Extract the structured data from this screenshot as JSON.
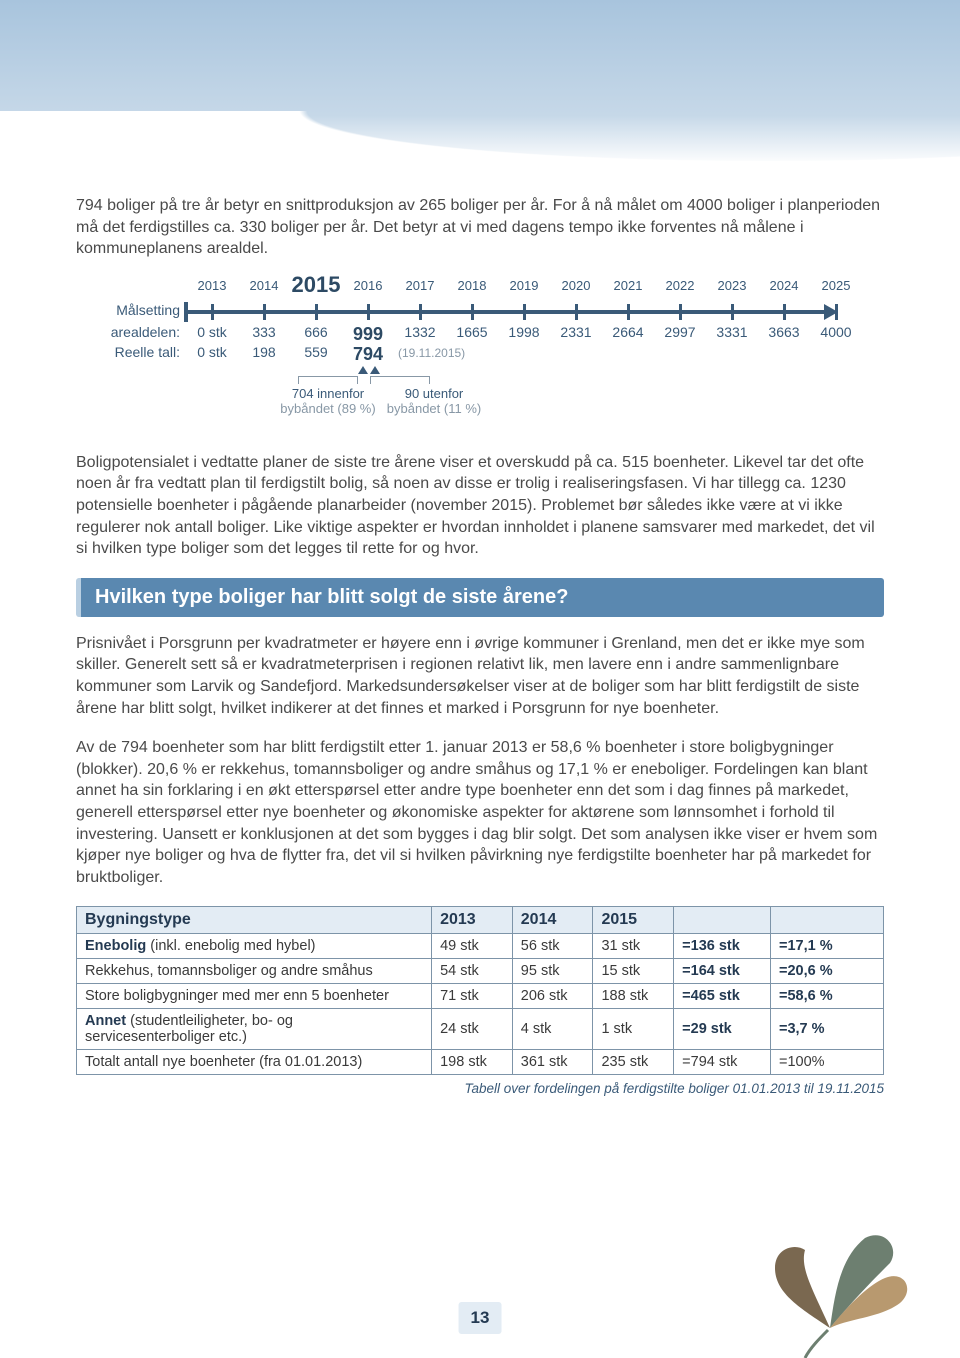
{
  "intro_para": "794 boliger på tre år betyr en snittproduksjon av 265 boliger per år. For å nå målet om 4000 boliger i planperioden må det ferdigstilles ca. 330 boliger per år. Det betyr at vi med dagens tempo ikke forventes nå målene i kommuneplanens arealdel.",
  "timeline": {
    "years": [
      "2013",
      "2014",
      "2015",
      "2016",
      "2017",
      "2018",
      "2019",
      "2020",
      "2021",
      "2022",
      "2023",
      "2024",
      "2025"
    ],
    "highlight_year_index": 2,
    "label_malsetting": "Målsetting",
    "label_arealdelen": "arealdelen:",
    "label_reelle": "Reelle tall:",
    "arealdelen": [
      "0 stk",
      "333",
      "666",
      "999",
      "1332",
      "1665",
      "1998",
      "2331",
      "2664",
      "2997",
      "3331",
      "3663",
      "4000"
    ],
    "highlight_areal_index": 3,
    "reelle": [
      "0 stk",
      "198",
      "559",
      "794"
    ],
    "highlight_reelle_index": 3,
    "reelle_note": "(19.11.2015)",
    "callout1_line1": "704 innenfor",
    "callout1_line2": "bybåndet (89 %)",
    "callout2_line1": "90 utenfor",
    "callout2_line2": "bybåndet (11 %)",
    "line_color": "#3a5a78"
  },
  "mid_para": "Boligpotensialet i vedtatte planer de siste tre årene viser et overskudd på ca. 515 boenheter. Likevel tar det ofte noen år fra vedtatt plan til ferdigstilt bolig, så noen av disse er trolig i realiseringsfasen. Vi har tillegg ca. 1230 potensielle boenheter i pågående planarbeider (november 2015). Problemet bør således ikke være at vi ikke regulerer nok antall boliger. Like viktige aspekter er hvordan innholdet i planene samsvarer med markedet, det vil si hvilken type boliger som det legges til rette for og hvor.",
  "section_heading": "Hvilken type boliger har blitt solgt de siste årene?",
  "para_a": "Prisnivået i Porsgrunn per kvadratmeter er høyere enn i øvrige kommuner i Grenland, men det er ikke mye som skiller. Generelt sett så er kvadratmeterprisen i regionen relativt lik, men lavere enn i andre sammenlignbare kommuner som Larvik og Sandefjord. Markedsundersøkelser viser at de boliger som har blitt ferdigstilt de siste årene har blitt solgt, hvilket indikerer at det finnes et marked i Porsgrunn for nye boenheter.",
  "para_b": "Av de 794 boenheter som har blitt ferdigstilt etter 1. januar 2013 er 58,6 % boenheter i store boligbygninger (blokker). 20,6 % er rekkehus, tomannsboliger og andre småhus og 17,1 % er eneboliger. Fordelingen kan blant annet ha sin forklaring i en økt etterspørsel etter andre type boenheter enn det som i dag finnes på markedet, generell etterspørsel etter nye boenheter og økonomiske aspekter for aktørene som lønnsomhet i forhold til investering.  Uansett er konklusjonen at det som bygges i dag blir solgt. Det som analysen ikke viser er hvem som kjøper nye boliger og hva de flytter fra, det vil si hvilken påvirkning nye ferdigstilte boenheter har på markedet for bruktboliger.",
  "table": {
    "headers": [
      "Bygningstype",
      "2013",
      "2014",
      "2015",
      "",
      ""
    ],
    "rows": [
      {
        "bold": true,
        "label": "Enebolig",
        "sublabel": " (inkl. enebolig med hybel)",
        "c1": "49 stk",
        "c2": "56 stk",
        "c3": "31 stk",
        "c4": "=136 stk",
        "c5": "=17,1 %",
        "c45bold": true
      },
      {
        "bold": false,
        "label": "Rekkehus, tomannsboliger og andre småhus",
        "sublabel": "",
        "c1": "54 stk",
        "c2": "95 stk",
        "c3": "15 stk",
        "c4": "=164 stk",
        "c5": "=20,6 %",
        "c45bold": true
      },
      {
        "bold": false,
        "label": "Store boligbygninger med mer enn 5 boenheter",
        "sublabel": "",
        "c1": "71 stk",
        "c2": "206 stk",
        "c3": "188 stk",
        "c4": "=465 stk",
        "c5": "=58,6 %",
        "c45bold": true
      },
      {
        "bold": true,
        "label": "Annet",
        "sublabel": " (studentleiligheter, bo- og servicesenterboliger etc.)",
        "c1": "24 stk",
        "c2": "4 stk",
        "c3": "1 stk",
        "c4": "=29 stk",
        "c5": "=3,7 %",
        "c45bold": true
      },
      {
        "bold": false,
        "label": "Totalt antall nye boenheter (fra 01.01.2013)",
        "sublabel": "",
        "c1": "198 stk",
        "c2": "361 stk",
        "c3": "235 stk",
        "c4": "=794 stk",
        "c5": "=100%",
        "c45bold": false
      }
    ],
    "caption": "Tabell over fordelingen på ferdigstilte boliger 01.01.2013 til 19.11.2015",
    "col_widths": [
      "44%",
      "10%",
      "10%",
      "10%",
      "12%",
      "14%"
    ]
  },
  "page_number": "13",
  "colors": {
    "heading_bg": "#5a88b0",
    "heading_border": "#b9cfe2",
    "th_bg": "#e3ecf4",
    "border": "#7d94a8",
    "leaf_a": "#b8996f",
    "leaf_b": "#6d7f70",
    "leaf_c": "#7a6850"
  }
}
